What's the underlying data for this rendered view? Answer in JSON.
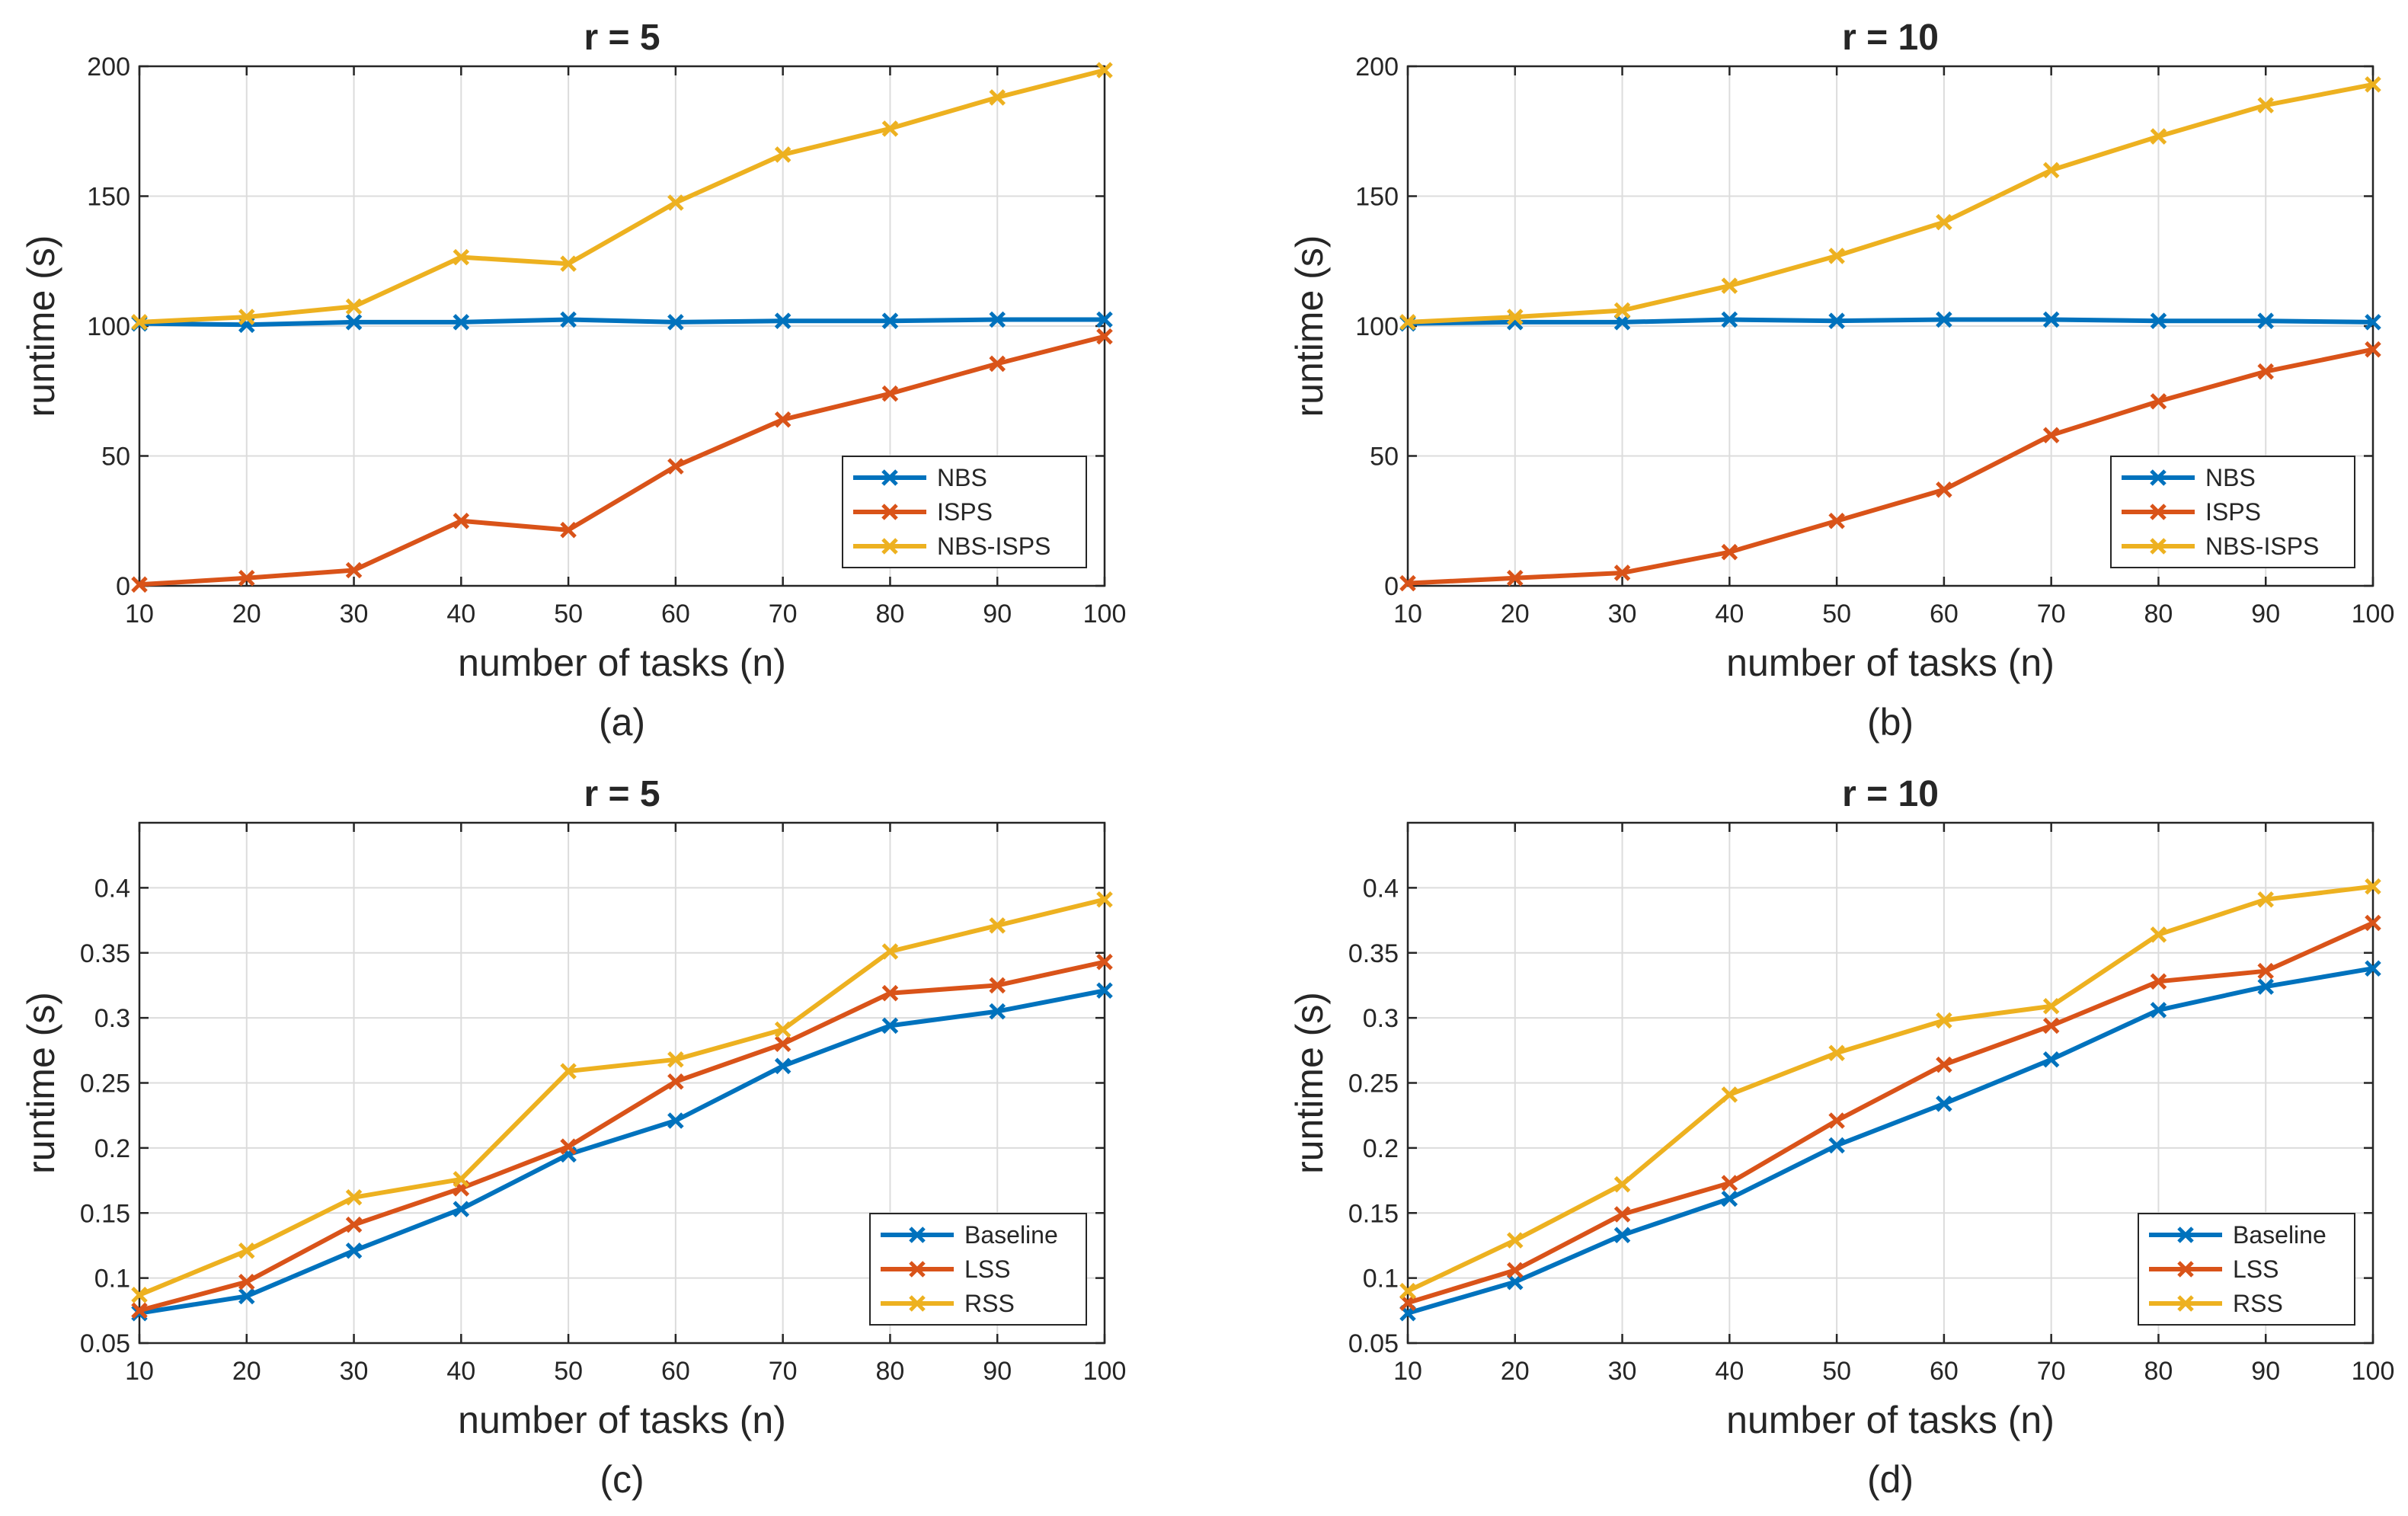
{
  "figure": {
    "series_colors": {
      "blue": "#0072BD",
      "orange": "#D95319",
      "yellow": "#EDB120"
    },
    "marker": "x-marker-icon"
  },
  "chart_data": [
    {
      "id": "a",
      "type": "line",
      "title": "r = 5",
      "caption": "(a)",
      "xlabel": "number of tasks (n)",
      "ylabel": "runtime (s)",
      "x": [
        10,
        20,
        30,
        40,
        50,
        60,
        70,
        80,
        90,
        100
      ],
      "xlim": [
        10,
        100
      ],
      "ylim": [
        0,
        200
      ],
      "xticks": [
        10,
        20,
        30,
        40,
        50,
        60,
        70,
        80,
        90,
        100
      ],
      "yticks": [
        0,
        50,
        100,
        150,
        200
      ],
      "ytick_labels": [
        "0",
        "50",
        "100",
        "150",
        "200"
      ],
      "grid": true,
      "legend": "bottom-right",
      "series": [
        {
          "name": "NBS",
          "color": "#0072BD",
          "values": [
            101,
            100.5,
            101.5,
            101.5,
            102.5,
            101.5,
            102,
            102,
            102.5,
            102.5
          ]
        },
        {
          "name": "ISPS",
          "color": "#D95319",
          "values": [
            0.5,
            3,
            6,
            25,
            21.5,
            46,
            64,
            74,
            85.5,
            96
          ]
        },
        {
          "name": "NBS-ISPS",
          "color": "#EDB120",
          "values": [
            101.5,
            103.5,
            107.5,
            126.5,
            124,
            147.5,
            166,
            176,
            188,
            198.5
          ]
        }
      ]
    },
    {
      "id": "b",
      "type": "line",
      "title": "r = 10",
      "caption": "(b)",
      "xlabel": "number of tasks (n)",
      "ylabel": "runtime (s)",
      "x": [
        10,
        20,
        30,
        40,
        50,
        60,
        70,
        80,
        90,
        100
      ],
      "xlim": [
        10,
        100
      ],
      "ylim": [
        0,
        200
      ],
      "xticks": [
        10,
        20,
        30,
        40,
        50,
        60,
        70,
        80,
        90,
        100
      ],
      "yticks": [
        0,
        50,
        100,
        150,
        200
      ],
      "ytick_labels": [
        "0",
        "50",
        "100",
        "150",
        "200"
      ],
      "grid": true,
      "legend": "bottom-right",
      "series": [
        {
          "name": "NBS",
          "color": "#0072BD",
          "values": [
            101,
            101.5,
            101.5,
            102.5,
            102,
            102.5,
            102.5,
            102,
            102,
            101.5
          ]
        },
        {
          "name": "ISPS",
          "color": "#D95319",
          "values": [
            1,
            3,
            5,
            13,
            25,
            37,
            58,
            71,
            82.5,
            91
          ]
        },
        {
          "name": "NBS-ISPS",
          "color": "#EDB120",
          "values": [
            101.5,
            103.5,
            106,
            115.5,
            127,
            140,
            160,
            173,
            185,
            193
          ]
        }
      ]
    },
    {
      "id": "c",
      "type": "line",
      "title": "r = 5",
      "caption": "(c)",
      "xlabel": "number of tasks (n)",
      "ylabel": "runtime (s)",
      "x": [
        10,
        20,
        30,
        40,
        50,
        60,
        70,
        80,
        90,
        100
      ],
      "xlim": [
        10,
        100
      ],
      "ylim": [
        0.05,
        0.45
      ],
      "xticks": [
        10,
        20,
        30,
        40,
        50,
        60,
        70,
        80,
        90,
        100
      ],
      "yticks": [
        0.05,
        0.1,
        0.15,
        0.2,
        0.25,
        0.3,
        0.35,
        0.4
      ],
      "ytick_labels": [
        "0.05",
        "0.1",
        "0.15",
        "0.2",
        "0.25",
        "0.3",
        "0.35",
        "0.4"
      ],
      "grid": true,
      "legend": "bottom-right",
      "series": [
        {
          "name": "Baseline",
          "color": "#0072BD",
          "values": [
            0.073,
            0.086,
            0.121,
            0.153,
            0.195,
            0.221,
            0.263,
            0.294,
            0.305,
            0.321
          ]
        },
        {
          "name": "LSS",
          "color": "#D95319",
          "values": [
            0.075,
            0.097,
            0.141,
            0.169,
            0.201,
            0.251,
            0.28,
            0.319,
            0.325,
            0.343
          ]
        },
        {
          "name": "RSS",
          "color": "#EDB120",
          "values": [
            0.087,
            0.121,
            0.162,
            0.176,
            0.259,
            0.268,
            0.291,
            0.351,
            0.371,
            0.391
          ]
        }
      ]
    },
    {
      "id": "d",
      "type": "line",
      "title": "r = 10",
      "caption": "(d)",
      "xlabel": "number of tasks (n)",
      "ylabel": "runtime (s)",
      "x": [
        10,
        20,
        30,
        40,
        50,
        60,
        70,
        80,
        90,
        100
      ],
      "xlim": [
        10,
        100
      ],
      "ylim": [
        0.05,
        0.45
      ],
      "xticks": [
        10,
        20,
        30,
        40,
        50,
        60,
        70,
        80,
        90,
        100
      ],
      "yticks": [
        0.05,
        0.1,
        0.15,
        0.2,
        0.25,
        0.3,
        0.35,
        0.4
      ],
      "ytick_labels": [
        "0.05",
        "0.1",
        "0.15",
        "0.2",
        "0.25",
        "0.3",
        "0.35",
        "0.4"
      ],
      "grid": true,
      "legend": "bottom-right",
      "series": [
        {
          "name": "Baseline",
          "color": "#0072BD",
          "values": [
            0.073,
            0.097,
            0.133,
            0.161,
            0.202,
            0.234,
            0.268,
            0.306,
            0.324,
            0.338
          ]
        },
        {
          "name": "LSS",
          "color": "#D95319",
          "values": [
            0.081,
            0.106,
            0.149,
            0.173,
            0.221,
            0.264,
            0.294,
            0.328,
            0.336,
            0.373
          ]
        },
        {
          "name": "RSS",
          "color": "#EDB120",
          "values": [
            0.09,
            0.129,
            0.172,
            0.241,
            0.273,
            0.298,
            0.309,
            0.364,
            0.391,
            0.401
          ]
        }
      ]
    }
  ]
}
